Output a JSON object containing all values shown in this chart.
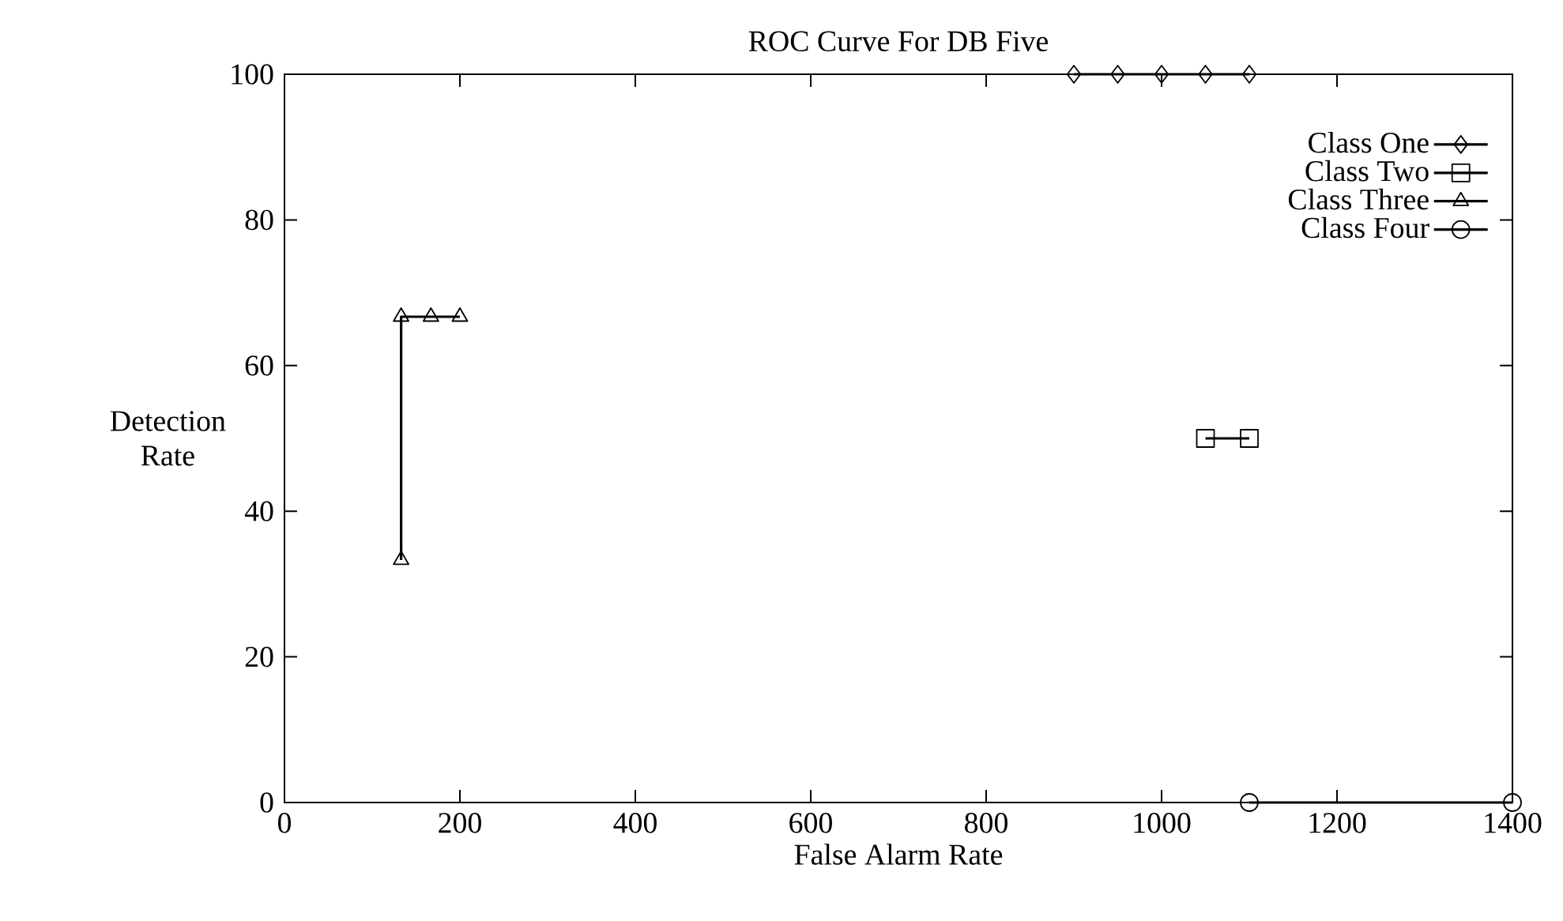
{
  "chart_data": {
    "type": "line",
    "title": "ROC Curve For DB Five",
    "xlabel": "False Alarm Rate",
    "ylabel": "Detection Rate",
    "xlim": [
      0,
      1400
    ],
    "ylim": [
      0,
      100
    ],
    "xticks": [
      0,
      200,
      400,
      600,
      800,
      1000,
      1200,
      1400
    ],
    "yticks": [
      0,
      20,
      40,
      60,
      80,
      100
    ],
    "legend": "top right",
    "grid": false,
    "line_style": "solid",
    "series": [
      {
        "name": "Class One",
        "color": "#000000",
        "marker": "diamond",
        "x": [
          900,
          950,
          1000,
          1050,
          1100
        ],
        "values": [
          100,
          100,
          100,
          100,
          100
        ]
      },
      {
        "name": "Class Two",
        "color": "#000000",
        "marker": "square",
        "x": [
          1050,
          1100
        ],
        "values": [
          50,
          50
        ]
      },
      {
        "name": "Class Three",
        "color": "#000000",
        "marker": "triangle",
        "x": [
          133,
          133,
          167,
          200
        ],
        "values": [
          33.3,
          66.7,
          66.7,
          66.7
        ]
      },
      {
        "name": "Class Four",
        "color": "#000000",
        "marker": "circle",
        "x": [
          1100,
          1400
        ],
        "values": [
          0,
          0
        ]
      }
    ]
  }
}
